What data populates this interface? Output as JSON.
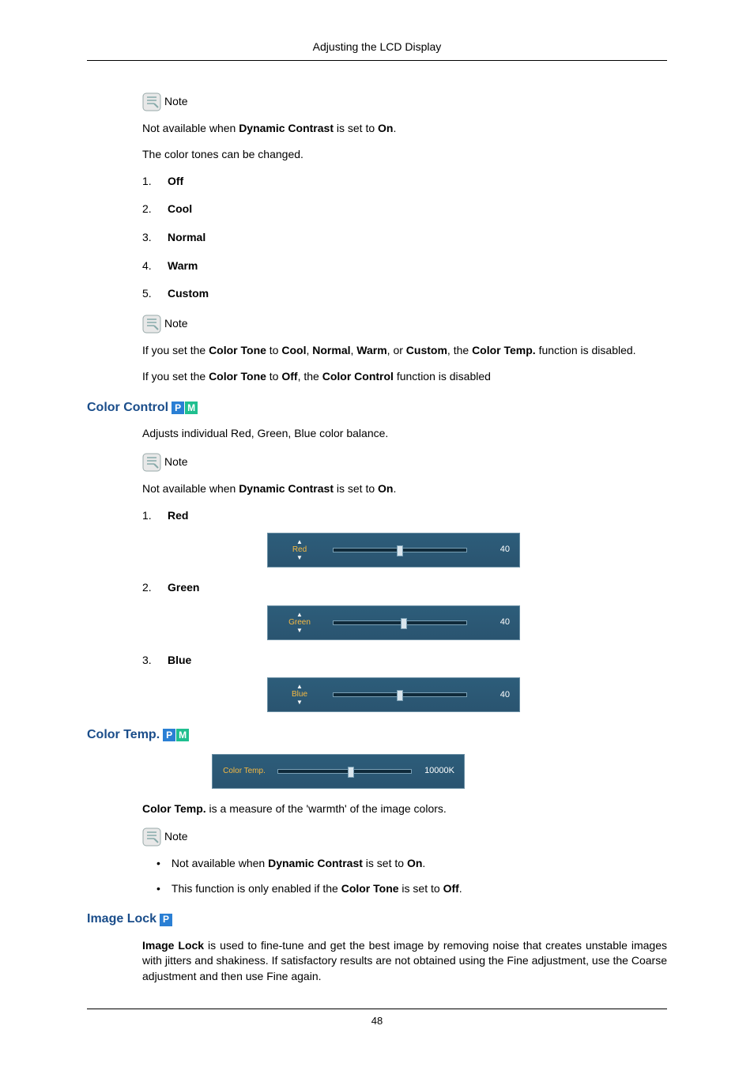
{
  "header": {
    "title": "Adjusting the LCD Display"
  },
  "note_label": "Note",
  "note1_text_parts": {
    "pre": "Not available when ",
    "b1": "Dynamic Contrast",
    "mid": " is set to ",
    "b2": "On",
    "post": "."
  },
  "tones_intro": "The color tones can be changed.",
  "tones": [
    {
      "n": "1.",
      "label": "Off"
    },
    {
      "n": "2.",
      "label": "Cool"
    },
    {
      "n": "3.",
      "label": "Normal"
    },
    {
      "n": "4.",
      "label": "Warm"
    },
    {
      "n": "5.",
      "label": "Custom"
    }
  ],
  "note2_parts": {
    "t1": "If you set the ",
    "b1": "Color Tone",
    "t2": " to ",
    "b2": "Cool",
    "c": ", ",
    "b3": "Normal",
    "b4": "Warm",
    "t3": ", or ",
    "b5": "Custom",
    "t4": ", the ",
    "b6": "Color Temp.",
    "t5": " function is disabled."
  },
  "note2b_parts": {
    "t1": "If you set the ",
    "b1": "Color Tone",
    "t2": " to ",
    "b2": "Off",
    "t3": ", the ",
    "b3": "Color Control",
    "t4": " function is disabled"
  },
  "color_control": {
    "heading": "Color Control",
    "intro": "Adjusts individual Red, Green, Blue color balance.",
    "sliders": [
      {
        "n": "1.",
        "label": "Red",
        "panel_label": "Red",
        "value": "40",
        "pct": 50
      },
      {
        "n": "2.",
        "label": "Green",
        "panel_label": "Green",
        "value": "40",
        "pct": 53
      },
      {
        "n": "3.",
        "label": "Blue",
        "panel_label": "Blue",
        "value": "40",
        "pct": 50
      }
    ]
  },
  "color_temp": {
    "heading": "Color Temp.",
    "panel_label": "Color Temp.",
    "value": "10000K",
    "pct": 55,
    "desc_parts": {
      "b1": "Color Temp.",
      "t1": " is a measure of the 'warmth' of the image colors."
    },
    "bul1": {
      "t1": "Not available when ",
      "b1": "Dynamic Contrast",
      "t2": " is set to ",
      "b2": "On",
      "t3": "."
    },
    "bul2": {
      "t1": "This function is only enabled if the ",
      "b1": "Color Tone",
      "t2": " is set to ",
      "b2": "Off",
      "t3": "."
    }
  },
  "image_lock": {
    "heading": "Image Lock",
    "para_parts": {
      "b1": "Image Lock",
      "t1": " is used to fine-tune and get the best image by removing noise that creates unstable images with jitters and shakiness. If satisfactory results are not obtained using the Fine adjustment, use the Coarse adjustment and then use Fine again."
    }
  },
  "page_number": "48"
}
